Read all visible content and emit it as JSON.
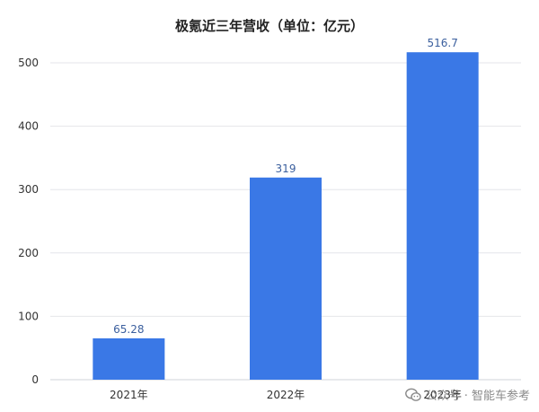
{
  "chart_data": {
    "type": "bar",
    "title": "极氪近三年营收（单位：亿元）",
    "xlabel": "",
    "ylabel": "",
    "categories": [
      "2021年",
      "2022年",
      "2023年"
    ],
    "values": [
      65.28,
      319,
      516.7
    ],
    "data_labels": [
      "65.28",
      "319",
      "516.7"
    ],
    "ylim": [
      0,
      500
    ],
    "yticks": [
      0,
      100,
      200,
      300,
      400,
      500
    ],
    "grid": true,
    "legend": "none",
    "colors": {
      "bar": "#3a78e6",
      "grid": "#e4e6ea",
      "tick_text": "#333333",
      "data_label": "#3b5f9e",
      "title": "#222222"
    }
  },
  "watermark": {
    "text": "公众号 · 智能车参考",
    "icon": "wechat-icon"
  }
}
